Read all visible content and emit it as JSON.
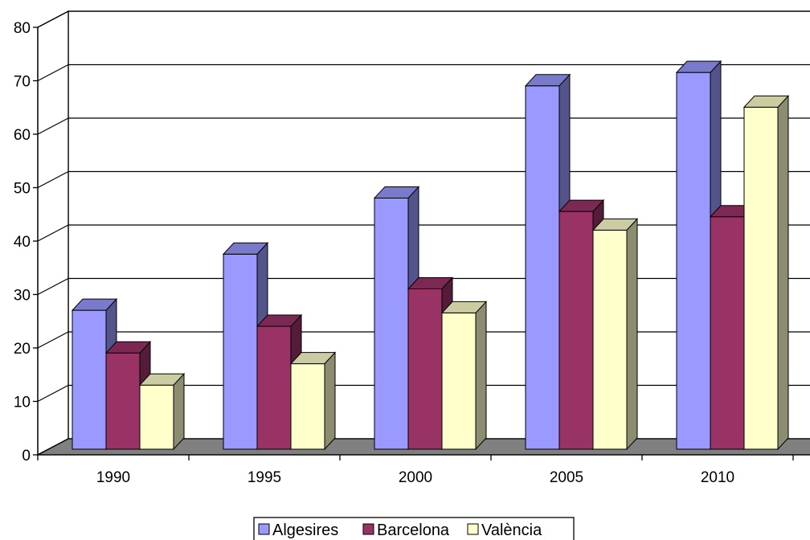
{
  "chart_data": {
    "type": "bar",
    "style": "3d-clustered",
    "title": "",
    "xlabel": "",
    "ylabel": "",
    "categories": [
      "1990",
      "1995",
      "2000",
      "2005",
      "2010"
    ],
    "series": [
      {
        "name": "Algesires",
        "values": [
          26,
          36.5,
          47,
          68,
          70.5
        ],
        "color": "#9999FF"
      },
      {
        "name": "Barcelona",
        "values": [
          18,
          23,
          30,
          44.5,
          43.5
        ],
        "color": "#993366"
      },
      {
        "name": "València",
        "values": [
          12,
          16,
          25.5,
          41,
          64
        ],
        "color": "#FFFFCC"
      }
    ],
    "ylim": [
      0,
      80
    ],
    "yticks": [
      "0",
      "10",
      "20",
      "30",
      "40",
      "50",
      "60",
      "70",
      "80"
    ],
    "grid": true,
    "floor_color": "#808080",
    "legend_position": "bottom"
  }
}
